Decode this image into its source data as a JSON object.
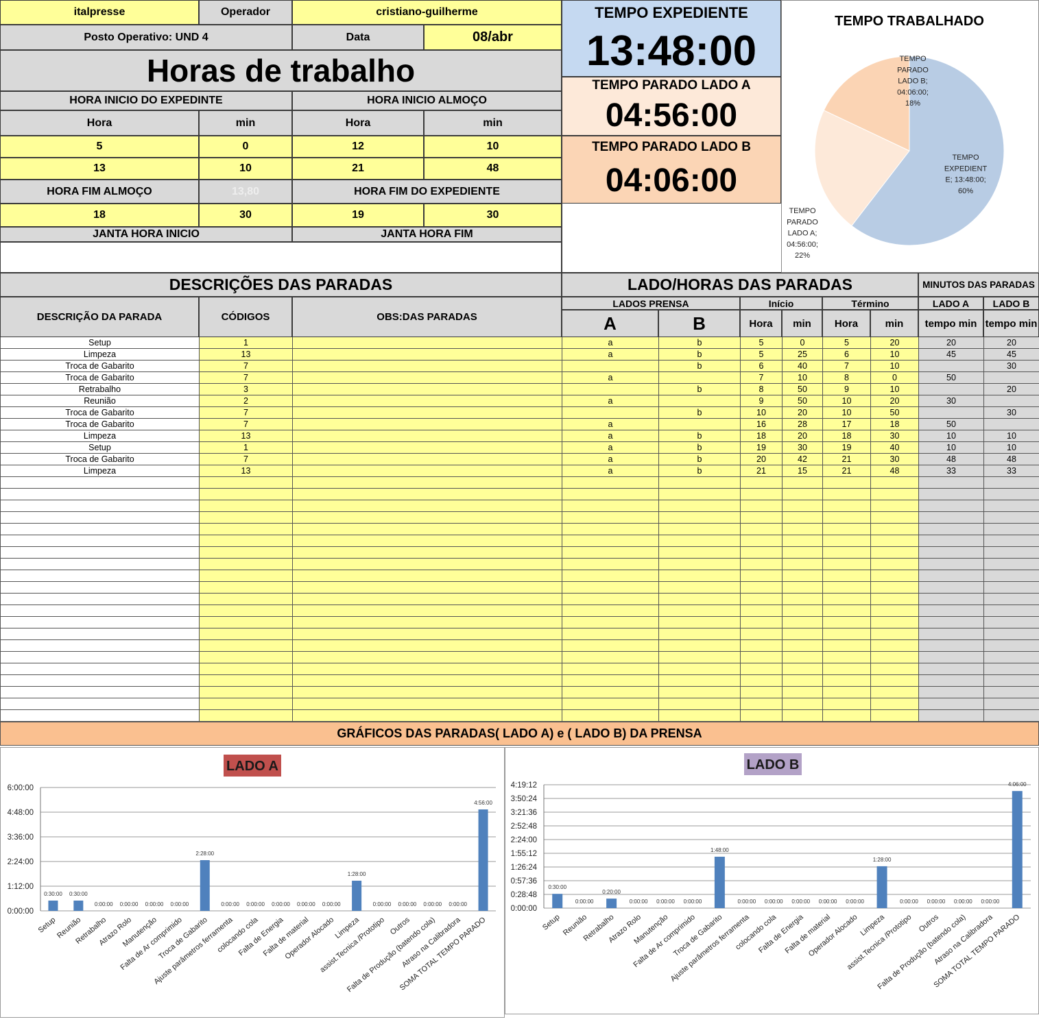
{
  "header": {
    "company": "italpresse",
    "operator_label": "Operador",
    "operator_name": "cristiano-guilherme",
    "posto": "Posto Operativo: UND 4",
    "data_label": "Data",
    "data_value": "08/abr",
    "main_title": "Horas de trabalho"
  },
  "hours": {
    "inicio_expediente_label": "HORA INICIO DO EXPEDINTE",
    "inicio_almoco_label": "HORA INICIO ALMOÇO",
    "hora_label": "Hora",
    "min_label": "min",
    "row1": [
      "5",
      "0",
      "12",
      "10"
    ],
    "row2": [
      "13",
      "10",
      "21",
      "48"
    ],
    "fim_almoco_label": "HORA FIM ALMOÇO",
    "faded_value": "13,80",
    "fim_expediente_label": "HORA FIM DO EXPEDIENTE",
    "row3": [
      "18",
      "30",
      "19",
      "30"
    ],
    "janta_inicio_label": "JANTA HORA INICIO",
    "janta_fim_label": "JANTA HORA FIM"
  },
  "timers": {
    "expediente_label": "TEMPO EXPEDIENTE",
    "expediente_value": "13:48:00",
    "lado_a_label": "TEMPO PARADO LADO A",
    "lado_a_value": "04:56:00",
    "lado_b_label": "TEMPO PARADO LADO B",
    "lado_b_value": "04:06:00",
    "color_expediente": "#c5d9f1",
    "color_lado_a": "#fde9d9",
    "color_lado_b": "#fbd5b5"
  },
  "stops_table": {
    "section_title": "DESCRIÇÕES DAS PARADAS",
    "sides_title": "LADO/HORAS DAS PARADAS",
    "minutes_title": "MINUTOS DAS PARADAS",
    "col_descricao": "DESCRIÇÃO DA PARADA",
    "col_codigos": "CÓDIGOS",
    "col_obs": "OBS:DAS PARADAS",
    "col_lados": "LADOS PRENSA",
    "col_a": "A",
    "col_b": "B",
    "col_inicio": "Início",
    "col_termino": "Término",
    "col_hora": "Hora",
    "col_min": "min",
    "col_lado_a": "LADO A",
    "col_lado_b": "LADO B",
    "col_tempo_min": "tempo min",
    "rows": [
      [
        "Setup",
        "1",
        "",
        "a",
        "b",
        "5",
        "0",
        "5",
        "20",
        "20",
        "20"
      ],
      [
        "Limpeza",
        "13",
        "",
        "a",
        "b",
        "5",
        "25",
        "6",
        "10",
        "45",
        "45"
      ],
      [
        "Troca de Gabarito",
        "7",
        "",
        "",
        "b",
        "6",
        "40",
        "7",
        "10",
        "",
        "30"
      ],
      [
        "Troca de Gabarito",
        "7",
        "",
        "a",
        "",
        "7",
        "10",
        "8",
        "0",
        "50",
        ""
      ],
      [
        "Retrabalho",
        "3",
        "",
        "",
        "b",
        "8",
        "50",
        "9",
        "10",
        "",
        "20"
      ],
      [
        "Reunião",
        "2",
        "",
        "a",
        "",
        "9",
        "50",
        "10",
        "20",
        "30",
        ""
      ],
      [
        "Troca de Gabarito",
        "7",
        "",
        "",
        "b",
        "10",
        "20",
        "10",
        "50",
        "",
        "30"
      ],
      [
        "Troca de Gabarito",
        "7",
        "",
        "a",
        "",
        "16",
        "28",
        "17",
        "18",
        "50",
        ""
      ],
      [
        "Limpeza",
        "13",
        "",
        "a",
        "b",
        "18",
        "20",
        "18",
        "30",
        "10",
        "10"
      ],
      [
        "Setup",
        "1",
        "",
        "a",
        "b",
        "19",
        "30",
        "19",
        "40",
        "10",
        "10"
      ],
      [
        "Troca de Gabarito",
        "7",
        "",
        "a",
        "b",
        "20",
        "42",
        "21",
        "30",
        "48",
        "48"
      ],
      [
        "Limpeza",
        "13",
        "",
        "a",
        "b",
        "21",
        "15",
        "21",
        "48",
        "33",
        "33"
      ]
    ],
    "empty_row_count": 21
  },
  "charts_banner": "GRÁFICOS DAS PARADAS( LADO A) e ( LADO B) DA PRENSA",
  "chart_data": [
    {
      "type": "pie",
      "title": "TEMPO TRABALHADO",
      "slices": [
        {
          "name": "TEMPO EXPEDIENTE",
          "value": 828,
          "value_label": "13:48:00",
          "percent": "60%",
          "color": "#b8cce4",
          "label_lines": [
            "TEMPO",
            "EXPEDIENT",
            "E; 13:48:00;",
            "60%"
          ]
        },
        {
          "name": "TEMPO PARADO LADO A",
          "value": 296,
          "value_label": "04:56:00",
          "percent": "22%",
          "color": "#fde9d9",
          "label_lines": [
            "TEMPO",
            "PARADO",
            "LADO A;",
            "04:56:00;",
            "22%"
          ]
        },
        {
          "name": "TEMPO PARADO LADO B",
          "value": 246,
          "value_label": "04:06:00",
          "percent": "18%",
          "color": "#fbd4b4",
          "label_lines": [
            "TEMPO",
            "PARADO",
            "LADO B;",
            "04:06:00;",
            "18%"
          ]
        }
      ]
    },
    {
      "type": "bar",
      "title": "LADO A",
      "categories": [
        "Setup",
        "Reunião",
        "Retrabalho",
        "Atrazo Rolo",
        "Manutenção",
        "Falta de Ar comprimido",
        "Troca de Gabarito",
        "Ajuste parâmetros ferramenta",
        "colocando cola",
        "Falta de Energia",
        "Falta de material",
        "Operador Alocado",
        "Limpeza",
        "assist.Tecnica /Prototipo",
        "Outros",
        "Falta de Produção (batendo cola)",
        "Atraso na Calibradora",
        "SOMA TOTAL TEMPO PARADO"
      ],
      "values": [
        30,
        30,
        0,
        0,
        0,
        0,
        148,
        0,
        0,
        0,
        0,
        0,
        88,
        0,
        0,
        0,
        0,
        296
      ],
      "value_labels": [
        "0:30:00",
        "0:30:00",
        "0:00:00",
        "0:00:00",
        "0:00:00",
        "0:00:00",
        "2:28:00",
        "0:00:00",
        "0:00:00",
        "0:00:00",
        "0:00:00",
        "0:00:00",
        "1:28:00",
        "0:00:00",
        "0:00:00",
        "0:00:00",
        "0:00:00",
        "4:56:00"
      ],
      "yticks": [
        "0:00:00",
        "1:12:00",
        "2:24:00",
        "3:36:00",
        "4:48:00",
        "6:00:00"
      ],
      "ylim": [
        0,
        360
      ],
      "bar_color": "#4f81bd"
    },
    {
      "type": "bar",
      "title": "LADO B",
      "categories": [
        "Setup",
        "Reunião",
        "Retrabalho",
        "Atrazo Rolo",
        "Manutenção",
        "Falta de Ar comprimido",
        "Troca de Gabarito",
        "Ajuste parâmetros ferramenta",
        "colocando cola",
        "Falta de Energia",
        "Falta de material",
        "Operador Alocado",
        "Limpeza",
        "assist.Tecnica /Prototipo",
        "Outros",
        "Falta de Produção (batendo cola)",
        "Atraso na Calibradora",
        "SOMA TOTAL TEMPO PARADO"
      ],
      "values": [
        30,
        0,
        20,
        0,
        0,
        0,
        108,
        0,
        0,
        0,
        0,
        0,
        88,
        0,
        0,
        0,
        0,
        246
      ],
      "value_labels": [
        "0:30:00",
        "0:00:00",
        "0:20:00",
        "0:00:00",
        "0:00:00",
        "0:00:00",
        "1:48:00",
        "0:00:00",
        "0:00:00",
        "0:00:00",
        "0:00:00",
        "0:00:00",
        "1:28:00",
        "0:00:00",
        "0:00:00",
        "0:00:00",
        "0:00:00",
        "4:06:00"
      ],
      "yticks": [
        "0:00:00",
        "0:28:48",
        "0:57:36",
        "1:26:24",
        "1:55:12",
        "2:24:00",
        "2:52:48",
        "3:21:36",
        "3:50:24",
        "4:19:12"
      ],
      "ylim": [
        0,
        259.2
      ],
      "bar_color": "#4f81bd"
    }
  ]
}
